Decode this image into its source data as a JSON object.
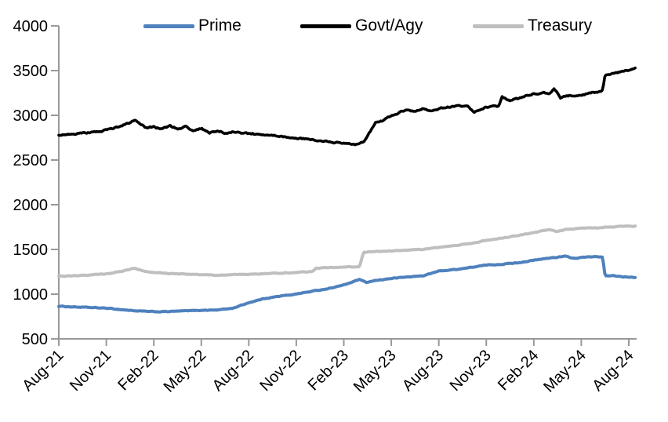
{
  "page": {
    "background": "#ffffff"
  },
  "legend": {
    "items": [
      {
        "label": "Prime",
        "color": "#4f81bd"
      },
      {
        "label": "Govt/Agy",
        "color": "#000000"
      },
      {
        "label": "Treasury",
        "color": "#bfbfbf"
      }
    ]
  },
  "chart_data": {
    "type": "line",
    "title": "",
    "xlabel": "",
    "ylabel": "",
    "x_unit": "months since Aug-2021 (0 = Aug-21, 36 = Aug-24)",
    "x_tick_labels": [
      "Aug-21",
      "Nov-21",
      "Feb-22",
      "May-22",
      "Aug-22",
      "Nov-22",
      "Feb-23",
      "May-23",
      "Aug-23",
      "Nov-23",
      "Feb-24",
      "May-24",
      "Aug-24"
    ],
    "x_tick_months": [
      0,
      3,
      6,
      9,
      12,
      15,
      18,
      21,
      24,
      27,
      30,
      33,
      36
    ],
    "y_tick_values": [
      500,
      1000,
      1500,
      2000,
      2500,
      3000,
      3500,
      4000
    ],
    "ylim": [
      500,
      4000
    ],
    "xlim_months": [
      0,
      36.4
    ],
    "grid": false,
    "legend_position": "top",
    "axis_color": "#999999",
    "series": [
      {
        "name": "Prime",
        "color": "#4f81bd",
        "stroke_width": 4,
        "jitter": 7,
        "points": [
          [
            0,
            865
          ],
          [
            1,
            857
          ],
          [
            2,
            850
          ],
          [
            3,
            843
          ],
          [
            4,
            826
          ],
          [
            5,
            812
          ],
          [
            6,
            803
          ],
          [
            7,
            806
          ],
          [
            8,
            813
          ],
          [
            9,
            820
          ],
          [
            10,
            823
          ],
          [
            11,
            843
          ],
          [
            12,
            905
          ],
          [
            13,
            952
          ],
          [
            14,
            978
          ],
          [
            15,
            1002
          ],
          [
            16,
            1032
          ],
          [
            17,
            1062
          ],
          [
            18,
            1102
          ],
          [
            19,
            1165
          ],
          [
            19.4,
            1128
          ],
          [
            20,
            1152
          ],
          [
            21,
            1176
          ],
          [
            22,
            1192
          ],
          [
            23,
            1205
          ],
          [
            24,
            1258
          ],
          [
            25,
            1275
          ],
          [
            26,
            1298
          ],
          [
            27,
            1325
          ],
          [
            28,
            1335
          ],
          [
            29,
            1352
          ],
          [
            30,
            1378
          ],
          [
            31,
            1405
          ],
          [
            32,
            1422
          ],
          [
            32.6,
            1398
          ],
          [
            33,
            1412
          ],
          [
            34,
            1418
          ],
          [
            34.35,
            1416
          ],
          [
            34.5,
            1202
          ],
          [
            35,
            1206
          ],
          [
            35.6,
            1195
          ],
          [
            36.4,
            1190
          ]
        ]
      },
      {
        "name": "Govt/Agy",
        "color": "#000000",
        "stroke_width": 3.6,
        "jitter": 16,
        "points": [
          [
            0,
            2782
          ],
          [
            1,
            2792
          ],
          [
            2,
            2806
          ],
          [
            3,
            2832
          ],
          [
            4,
            2886
          ],
          [
            4.8,
            2940
          ],
          [
            5.5,
            2862
          ],
          [
            6,
            2872
          ],
          [
            6.5,
            2846
          ],
          [
            7,
            2880
          ],
          [
            7.5,
            2852
          ],
          [
            8,
            2872
          ],
          [
            8.5,
            2832
          ],
          [
            9,
            2856
          ],
          [
            9.5,
            2802
          ],
          [
            10,
            2822
          ],
          [
            10.5,
            2802
          ],
          [
            11,
            2812
          ],
          [
            12,
            2796
          ],
          [
            13,
            2782
          ],
          [
            14,
            2762
          ],
          [
            15,
            2746
          ],
          [
            16,
            2726
          ],
          [
            17,
            2702
          ],
          [
            18,
            2686
          ],
          [
            18.7,
            2666
          ],
          [
            19.3,
            2702
          ],
          [
            20,
            2922
          ],
          [
            20.5,
            2942
          ],
          [
            21,
            2992
          ],
          [
            22,
            3062
          ],
          [
            22.5,
            3042
          ],
          [
            23,
            3072
          ],
          [
            23.5,
            3052
          ],
          [
            24,
            3076
          ],
          [
            25,
            3096
          ],
          [
            25.8,
            3112
          ],
          [
            26.2,
            3036
          ],
          [
            27,
            3092
          ],
          [
            27.8,
            3102
          ],
          [
            28,
            3206
          ],
          [
            28.5,
            3166
          ],
          [
            29,
            3192
          ],
          [
            30,
            3242
          ],
          [
            30.5,
            3252
          ],
          [
            31,
            3246
          ],
          [
            31.3,
            3292
          ],
          [
            31.7,
            3192
          ],
          [
            32,
            3216
          ],
          [
            33,
            3232
          ],
          [
            34,
            3262
          ],
          [
            34.35,
            3282
          ],
          [
            34.5,
            3456
          ],
          [
            35,
            3466
          ],
          [
            35.5,
            3482
          ],
          [
            36.4,
            3522
          ]
        ]
      },
      {
        "name": "Treasury",
        "color": "#bfbfbf",
        "stroke_width": 4,
        "jitter": 7,
        "points": [
          [
            0,
            1200
          ],
          [
            1,
            1206
          ],
          [
            2,
            1214
          ],
          [
            3,
            1228
          ],
          [
            4,
            1256
          ],
          [
            4.8,
            1292
          ],
          [
            5.5,
            1252
          ],
          [
            6,
            1244
          ],
          [
            7,
            1230
          ],
          [
            8,
            1224
          ],
          [
            9,
            1217
          ],
          [
            10,
            1212
          ],
          [
            11,
            1216
          ],
          [
            12,
            1222
          ],
          [
            13,
            1230
          ],
          [
            14,
            1237
          ],
          [
            15,
            1244
          ],
          [
            16,
            1252
          ],
          [
            16.25,
            1292
          ],
          [
            17,
            1298
          ],
          [
            18,
            1302
          ],
          [
            19,
            1306
          ],
          [
            19.25,
            1468
          ],
          [
            20,
            1478
          ],
          [
            21,
            1483
          ],
          [
            22,
            1490
          ],
          [
            23,
            1502
          ],
          [
            24,
            1522
          ],
          [
            25,
            1542
          ],
          [
            26,
            1568
          ],
          [
            27,
            1600
          ],
          [
            28,
            1628
          ],
          [
            29,
            1656
          ],
          [
            30,
            1688
          ],
          [
            31,
            1722
          ],
          [
            31.5,
            1702
          ],
          [
            32,
            1726
          ],
          [
            33,
            1738
          ],
          [
            34,
            1742
          ],
          [
            35,
            1752
          ],
          [
            36.4,
            1763
          ]
        ]
      }
    ]
  }
}
